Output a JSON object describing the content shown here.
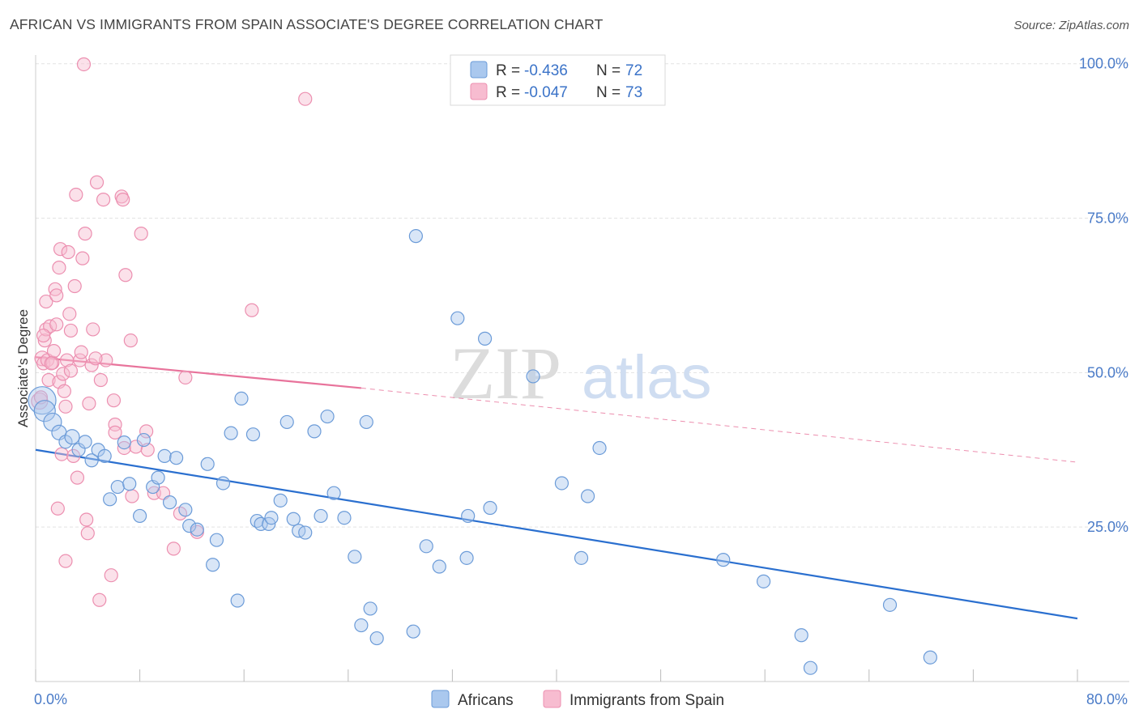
{
  "header": {
    "title": "AFRICAN VS IMMIGRANTS FROM SPAIN ASSOCIATE'S DEGREE CORRELATION CHART",
    "source": "Source: ZipAtlas.com"
  },
  "watermark": {
    "zip": "ZIP",
    "atlas": "atlas"
  },
  "legend_top": {
    "africans": {
      "r_label": "R =",
      "r_value": "-0.436",
      "n_label": "N =",
      "n_value": "72"
    },
    "spain": {
      "r_label": "R =",
      "r_value": "-0.047",
      "n_label": "N =",
      "n_value": "73"
    }
  },
  "legend_bottom": {
    "africans": "Africans",
    "spain": "Immigrants from Spain"
  },
  "colors": {
    "africans_fill": "#aac8ee",
    "africans_stroke": "#6b9bd8",
    "africans_line": "#2a6fcf",
    "spain_fill": "#f7bcd0",
    "spain_stroke": "#ec8fb0",
    "spain_line": "#e8739b",
    "grid": "#e3e3e3",
    "tick_label": "#4a7bc8"
  },
  "chart_data": {
    "type": "scatter",
    "title": "AFRICAN VS IMMIGRANTS FROM SPAIN ASSOCIATE'S DEGREE CORRELATION CHART",
    "xlabel": "",
    "ylabel": "Associate's Degree",
    "xlim": [
      0,
      80
    ],
    "ylim": [
      0,
      105
    ],
    "x_tick_labels": [
      "0.0%",
      "80.0%"
    ],
    "y_ticks": [
      25,
      50,
      75,
      100
    ],
    "y_tick_labels": [
      "25.0%",
      "50.0%",
      "75.0%",
      "100.0%"
    ],
    "grid": true,
    "legend_placement": "top-center and bottom-center",
    "series": [
      {
        "name": "Africans",
        "r": -0.436,
        "n": 72,
        "trend": {
          "x": [
            0,
            80
          ],
          "y": [
            37.5,
            10.2
          ],
          "style": "solid"
        },
        "points": [
          [
            0.5,
            45.5,
            16
          ],
          [
            0.7,
            43.8,
            12
          ],
          [
            1.3,
            42.0,
            10
          ],
          [
            1.8,
            40.3,
            8
          ],
          [
            2.3,
            38.8,
            7
          ],
          [
            2.8,
            39.6,
            8
          ],
          [
            3.3,
            37.5,
            7
          ],
          [
            3.8,
            38.8,
            7
          ],
          [
            4.3,
            35.8,
            7
          ],
          [
            4.8,
            37.5,
            7
          ],
          [
            5.3,
            36.5,
            7
          ],
          [
            5.7,
            29.5,
            7
          ],
          [
            6.3,
            31.5,
            7
          ],
          [
            6.8,
            38.7,
            7
          ],
          [
            7.2,
            32.0,
            7
          ],
          [
            8.0,
            26.8,
            7
          ],
          [
            8.3,
            39.1,
            7
          ],
          [
            9.0,
            31.5,
            7
          ],
          [
            9.4,
            33.0,
            7
          ],
          [
            9.9,
            36.5,
            7
          ],
          [
            10.3,
            29.0,
            7
          ],
          [
            10.8,
            36.2,
            7
          ],
          [
            11.5,
            27.8,
            7
          ],
          [
            11.8,
            25.2,
            7
          ],
          [
            12.4,
            24.6,
            7
          ],
          [
            13.2,
            35.2,
            7
          ],
          [
            13.6,
            18.9,
            7
          ],
          [
            13.9,
            22.9,
            7
          ],
          [
            14.4,
            32.1,
            7
          ],
          [
            15.0,
            40.2,
            7
          ],
          [
            15.5,
            13.1,
            7
          ],
          [
            15.8,
            45.8,
            7
          ],
          [
            16.7,
            40.0,
            7
          ],
          [
            17.0,
            26.0,
            7
          ],
          [
            17.3,
            25.5,
            7
          ],
          [
            17.9,
            25.5,
            7
          ],
          [
            18.1,
            26.5,
            7
          ],
          [
            18.8,
            29.3,
            7
          ],
          [
            19.3,
            42.0,
            7
          ],
          [
            19.8,
            26.3,
            7
          ],
          [
            20.2,
            24.4,
            7
          ],
          [
            20.7,
            24.1,
            7
          ],
          [
            21.4,
            40.5,
            7
          ],
          [
            21.9,
            26.8,
            7
          ],
          [
            22.4,
            42.9,
            7
          ],
          [
            22.9,
            30.5,
            7
          ],
          [
            23.7,
            26.5,
            7
          ],
          [
            24.5,
            20.2,
            7
          ],
          [
            25.0,
            9.1,
            7
          ],
          [
            25.4,
            42.0,
            7
          ],
          [
            25.7,
            11.8,
            7
          ],
          [
            26.2,
            7.0,
            7
          ],
          [
            29.0,
            8.1,
            7
          ],
          [
            29.2,
            72.1,
            7
          ],
          [
            30.0,
            21.9,
            7
          ],
          [
            31.0,
            18.6,
            7
          ],
          [
            32.4,
            58.8,
            7
          ],
          [
            33.1,
            20.0,
            7
          ],
          [
            33.2,
            26.8,
            7
          ],
          [
            34.5,
            55.5,
            7
          ],
          [
            34.9,
            28.1,
            7
          ],
          [
            38.2,
            49.4,
            7
          ],
          [
            40.4,
            32.1,
            7
          ],
          [
            41.9,
            20.0,
            7
          ],
          [
            42.4,
            30.0,
            7
          ],
          [
            43.3,
            37.8,
            7
          ],
          [
            52.8,
            19.7,
            7
          ],
          [
            55.9,
            16.2,
            7
          ],
          [
            58.8,
            7.5,
            7
          ],
          [
            59.5,
            2.2,
            7
          ],
          [
            65.6,
            12.4,
            7
          ],
          [
            68.7,
            3.9,
            7
          ]
        ]
      },
      {
        "name": "Immigrants from Spain",
        "r": -0.047,
        "n": 73,
        "trend": {
          "x": [
            0,
            25
          ],
          "y": [
            52.5,
            47.5
          ],
          "style": "solid",
          "extended": {
            "x": [
              25,
              80
            ],
            "y": [
              47.5,
              35.5
            ],
            "style": "dashed"
          }
        },
        "points": [
          [
            0.3,
            45.4,
            9
          ],
          [
            0.4,
            46.0,
            7
          ],
          [
            0.5,
            52.3,
            8
          ],
          [
            0.6,
            51.5,
            7
          ],
          [
            0.7,
            55.2,
            7
          ],
          [
            0.8,
            57.0,
            7
          ],
          [
            0.8,
            61.5,
            7
          ],
          [
            0.9,
            52.0,
            7
          ],
          [
            1.0,
            48.8,
            7
          ],
          [
            1.1,
            57.5,
            7
          ],
          [
            1.3,
            51.6,
            7
          ],
          [
            1.4,
            53.5,
            7
          ],
          [
            1.5,
            63.5,
            7
          ],
          [
            1.6,
            62.5,
            7
          ],
          [
            1.6,
            57.8,
            7
          ],
          [
            1.7,
            28.0,
            7
          ],
          [
            1.8,
            67.0,
            7
          ],
          [
            1.8,
            48.5,
            7
          ],
          [
            1.9,
            70.0,
            7
          ],
          [
            2.0,
            36.8,
            7
          ],
          [
            2.1,
            49.8,
            7
          ],
          [
            2.3,
            19.5,
            7
          ],
          [
            2.3,
            44.5,
            7
          ],
          [
            2.4,
            52.0,
            7
          ],
          [
            2.5,
            69.5,
            7
          ],
          [
            2.6,
            59.5,
            7
          ],
          [
            2.7,
            50.3,
            7
          ],
          [
            2.7,
            56.8,
            7
          ],
          [
            2.9,
            36.5,
            7
          ],
          [
            3.0,
            64.0,
            7
          ],
          [
            3.1,
            78.8,
            7
          ],
          [
            3.2,
            33.0,
            7
          ],
          [
            3.4,
            52.0,
            7
          ],
          [
            3.5,
            53.3,
            7
          ],
          [
            3.6,
            68.5,
            7
          ],
          [
            3.8,
            72.5,
            7
          ],
          [
            3.9,
            26.2,
            7
          ],
          [
            4.0,
            24.0,
            7
          ],
          [
            4.1,
            45.0,
            7
          ],
          [
            4.3,
            51.2,
            7
          ],
          [
            4.4,
            57.0,
            7
          ],
          [
            4.7,
            80.8,
            7
          ],
          [
            4.9,
            13.2,
            7
          ],
          [
            5.0,
            48.8,
            7
          ],
          [
            5.2,
            78.0,
            7
          ],
          [
            5.4,
            52.0,
            7
          ],
          [
            5.8,
            17.2,
            7
          ],
          [
            6.0,
            45.5,
            7
          ],
          [
            6.1,
            41.6,
            7
          ],
          [
            6.1,
            40.3,
            7
          ],
          [
            6.6,
            78.5,
            7
          ],
          [
            6.7,
            78.0,
            7
          ],
          [
            6.8,
            37.8,
            7
          ],
          [
            6.9,
            65.8,
            7
          ],
          [
            7.3,
            55.2,
            7
          ],
          [
            7.4,
            30.0,
            7
          ],
          [
            7.7,
            38.0,
            7
          ],
          [
            8.1,
            72.5,
            7
          ],
          [
            8.5,
            40.5,
            7
          ],
          [
            8.6,
            37.5,
            7
          ],
          [
            9.1,
            30.5,
            7
          ],
          [
            9.8,
            30.5,
            7
          ],
          [
            10.6,
            21.5,
            7
          ],
          [
            11.1,
            27.2,
            7
          ],
          [
            11.5,
            49.2,
            7
          ],
          [
            12.4,
            24.2,
            7
          ],
          [
            16.6,
            60.1,
            7
          ],
          [
            3.7,
            99.9,
            7
          ],
          [
            20.7,
            94.3,
            7
          ],
          [
            0.6,
            56.0,
            7
          ],
          [
            1.2,
            51.5,
            7
          ],
          [
            2.2,
            47.0,
            7
          ],
          [
            4.6,
            52.3,
            7
          ]
        ]
      }
    ]
  }
}
